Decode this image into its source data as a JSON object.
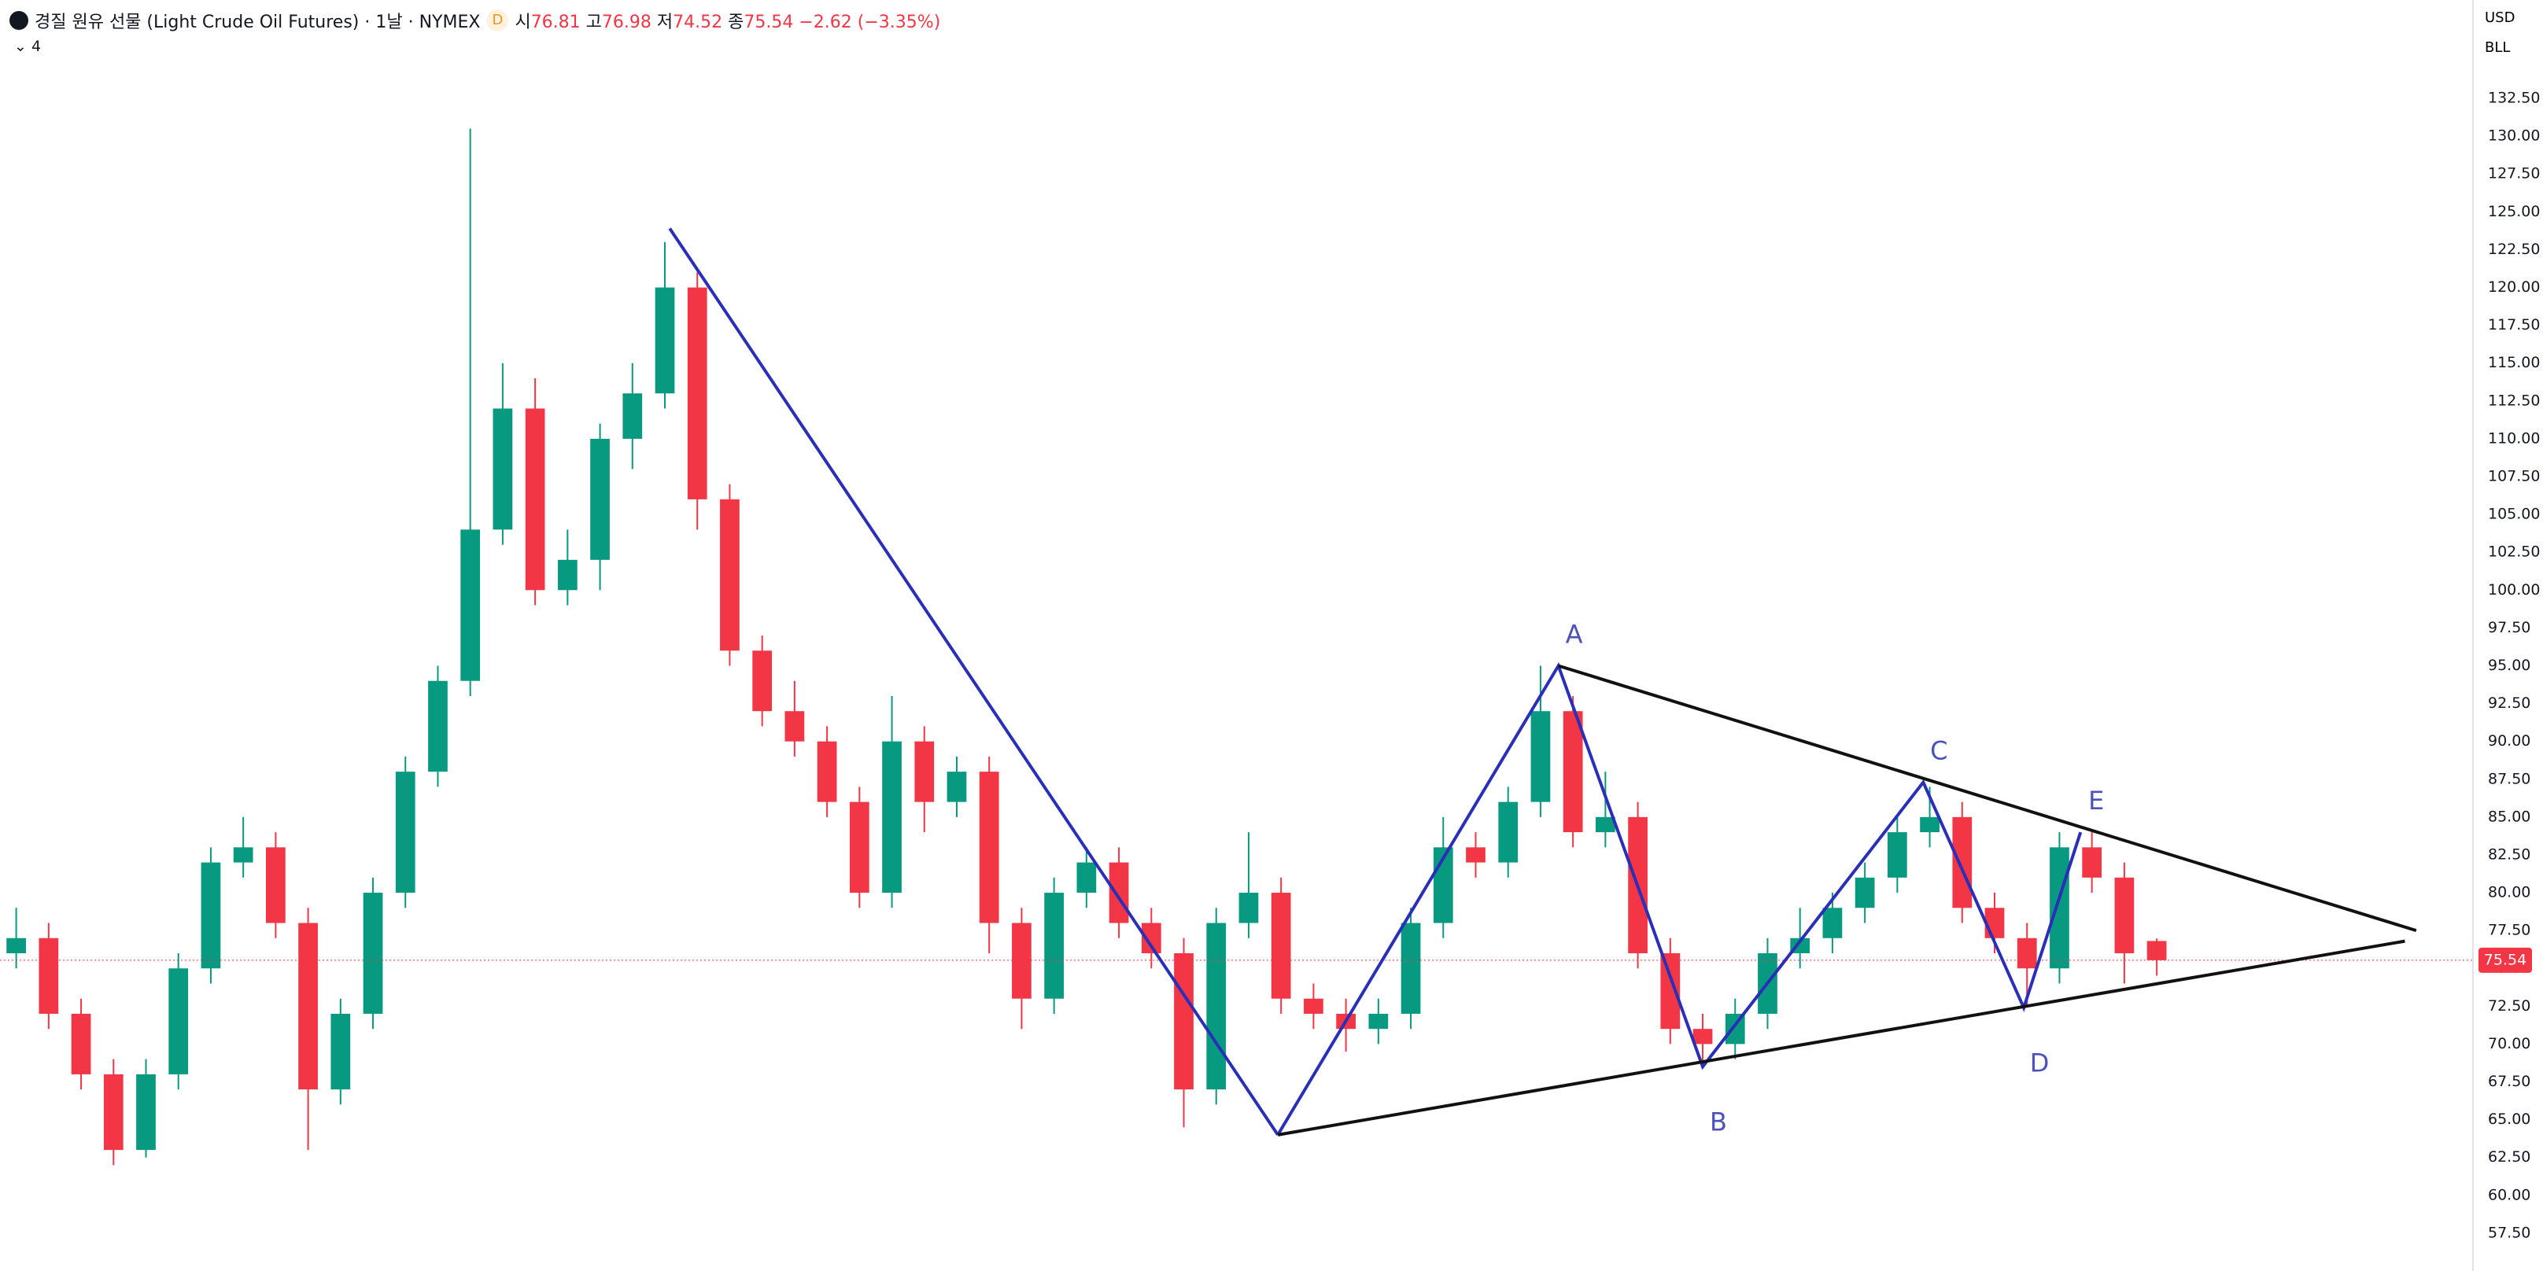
{
  "header": {
    "title": "경질 원유 선물 (Light Crude Oil Futures) · 1날 · NYMEX",
    "badge": "D",
    "open_label": "시",
    "high_label": "고",
    "low_label": "저",
    "close_label": "종",
    "change": "−2.62 (−3.35%)",
    "indicators": "4",
    "currency": "USD",
    "unit": "BLL"
  },
  "chart_data": {
    "type": "candlestick",
    "open": [
      76,
      77,
      72,
      68,
      63,
      68,
      75,
      82,
      83,
      78,
      67,
      72,
      80,
      88,
      94,
      104,
      112,
      100,
      102,
      110,
      113,
      120,
      106,
      96,
      92,
      90,
      86,
      80,
      90,
      86,
      88,
      78,
      73,
      80,
      82,
      78,
      76,
      67,
      78,
      80,
      73,
      72,
      71,
      72,
      78,
      83,
      82,
      86,
      92,
      84,
      85,
      76,
      71,
      70,
      72,
      76,
      77,
      79,
      81,
      84,
      85,
      79,
      77,
      75,
      83,
      81,
      76.81
    ],
    "high": [
      79,
      78,
      73,
      69,
      69,
      76,
      83,
      85,
      84,
      79,
      73,
      81,
      89,
      95,
      130.5,
      115,
      114,
      104,
      111,
      115,
      123,
      121,
      107,
      97,
      94,
      91,
      87,
      93,
      91,
      89,
      89,
      79,
      81,
      83,
      83,
      79,
      77,
      79,
      84,
      81,
      74,
      73,
      73,
      79,
      85,
      84,
      87,
      95,
      93,
      88,
      86,
      77,
      72,
      73,
      77,
      79,
      80,
      82,
      85,
      87,
      86,
      80,
      78,
      84,
      84,
      82,
      76.98
    ],
    "low": [
      75,
      71,
      67,
      62,
      62.5,
      67,
      74,
      81,
      77,
      63,
      66,
      71,
      79,
      87,
      93,
      103,
      99,
      99,
      100,
      108,
      112,
      104,
      95,
      91,
      89,
      85,
      79,
      79,
      84,
      85,
      76,
      71,
      72,
      79,
      77,
      75,
      64.5,
      66,
      77,
      72,
      71,
      69.5,
      70,
      71,
      77,
      81,
      81,
      85,
      83,
      83,
      75,
      70,
      68.5,
      69,
      71,
      75,
      76,
      78,
      80,
      83,
      78,
      76,
      72.5,
      74,
      80,
      74,
      74.52
    ],
    "close": [
      77,
      72,
      68,
      63,
      68,
      75,
      82,
      83,
      78,
      67,
      72,
      80,
      88,
      94,
      104,
      112,
      100,
      102,
      110,
      113,
      120,
      106,
      96,
      92,
      90,
      86,
      80,
      90,
      86,
      88,
      78,
      73,
      80,
      82,
      78,
      76,
      67,
      78,
      80,
      73,
      72,
      71,
      72,
      78,
      83,
      82,
      86,
      92,
      84,
      85,
      76,
      71,
      70,
      72,
      76,
      77,
      79,
      81,
      84,
      85,
      79,
      77,
      75,
      83,
      81,
      76,
      75.54
    ],
    "up_color": "#089981",
    "down_color": "#f23645",
    "xlim": [
      -0.5,
      75.75
    ],
    "ylim": [
      55,
      139
    ],
    "yticks": [
      {
        "value": 57.5,
        "label": "57.50"
      },
      {
        "value": 60,
        "label": "60.00"
      },
      {
        "value": 62.5,
        "label": "62.50"
      },
      {
        "value": 65,
        "label": "65.00"
      },
      {
        "value": 67.5,
        "label": "67.50"
      },
      {
        "value": 70,
        "label": "70.00"
      },
      {
        "value": 72.5,
        "label": "72.50"
      },
      {
        "value": 75,
        "label": "75.00"
      },
      {
        "value": 77.5,
        "label": "77.50"
      },
      {
        "value": 80,
        "label": "80.00"
      },
      {
        "value": 82.5,
        "label": "82.50"
      },
      {
        "value": 85,
        "label": "85.00"
      },
      {
        "value": 87.5,
        "label": "87.50"
      },
      {
        "value": 90,
        "label": "90.00"
      },
      {
        "value": 92.5,
        "label": "92.50"
      },
      {
        "value": 95,
        "label": "95.00"
      },
      {
        "value": 97.5,
        "label": "97.50"
      },
      {
        "value": 100,
        "label": "100.00"
      },
      {
        "value": 102.5,
        "label": "102.50"
      },
      {
        "value": 105,
        "label": "105.00"
      },
      {
        "value": 107.5,
        "label": "107.50"
      },
      {
        "value": 110,
        "label": "110.00"
      },
      {
        "value": 112.5,
        "label": "112.50"
      },
      {
        "value": 115,
        "label": "115.00"
      },
      {
        "value": 117.5,
        "label": "117.50"
      },
      {
        "value": 120,
        "label": "120.00"
      },
      {
        "value": 122.5,
        "label": "122.50"
      },
      {
        "value": 125,
        "label": "125.00"
      },
      {
        "value": 127.5,
        "label": "127.50"
      },
      {
        "value": 130,
        "label": "130.00"
      },
      {
        "value": 132.5,
        "label": "132.50"
      }
    ],
    "grid": false,
    "drawings": [
      {
        "color": "#2a2fb8",
        "x": [
          20.15,
          38.9
        ],
        "y": [
          123.9,
          64
        ]
      },
      {
        "color": "#2a2fb8",
        "x": [
          38.9,
          47.55,
          52,
          58.8,
          61.9,
          63.65
        ],
        "y": [
          64,
          95,
          68.5,
          87.3,
          72.4,
          84
        ],
        "labels": [
          null,
          "A",
          "B",
          "C",
          "D",
          "E"
        ]
      },
      {
        "color": "#111111",
        "x": [
          47.55,
          74
        ],
        "y": [
          95,
          77.5
        ]
      },
      {
        "color": "#111111",
        "x": [
          38.9,
          73.65
        ],
        "y": [
          64,
          76.8
        ]
      }
    ]
  }
}
